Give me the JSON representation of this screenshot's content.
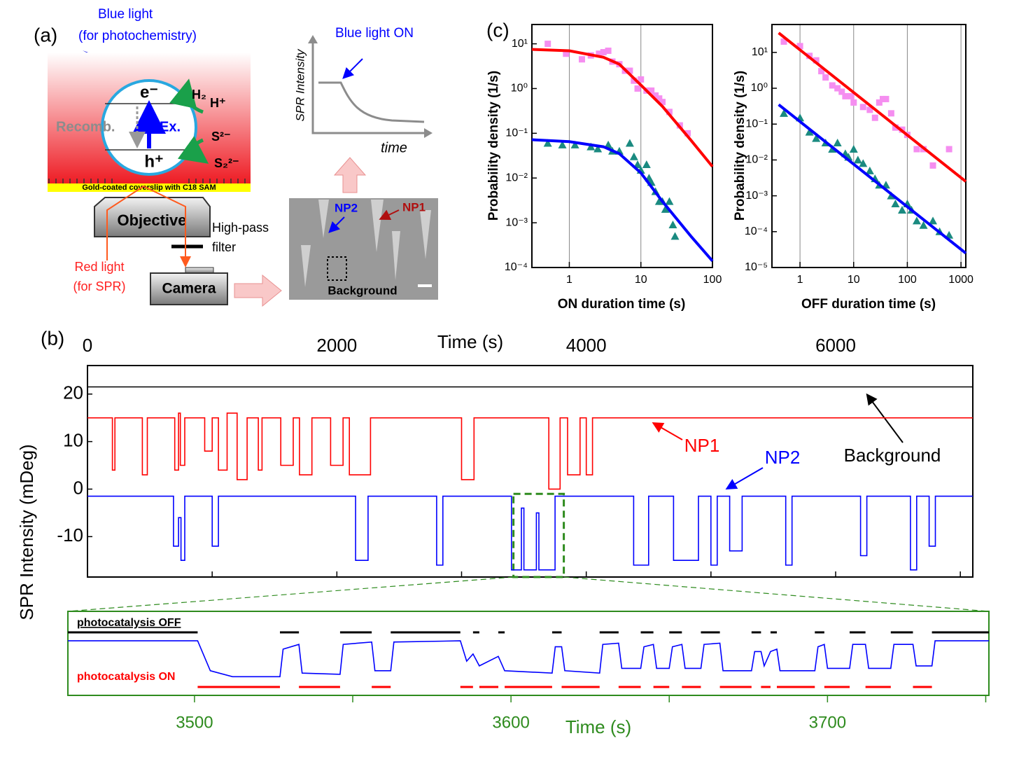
{
  "panel_a": {
    "label": "(a)",
    "blue_light": "Blue light",
    "blue_light_note": "(for photochemistry)",
    "electron": "e⁻",
    "hole": "h⁺",
    "excitation": "Ex.",
    "recombination": "Recomb.",
    "h2": "H₂",
    "hplus": "H⁺",
    "s2": "S²⁻",
    "s22": "S₂²⁻",
    "substrate": "Gold-coated coverslip with C18 SAM",
    "objective": "Objective",
    "filter_1": "High-pass",
    "filter_2": "filter",
    "red_light": "Red light",
    "red_light_note": "(for SPR)",
    "camera": "Camera",
    "sketch_event": "Blue light ON",
    "sketch_ylabel": "SPR Intensity",
    "sketch_xlabel": "time",
    "image_np2": "NP2",
    "image_np1": "NP1",
    "image_background": "Background"
  },
  "chart_data": [
    {
      "type": "scatter",
      "label": "(c)",
      "xlabel": "ON duration time (s)",
      "ylabel": "Probability density (1/s)",
      "log_x": true,
      "log_y": true,
      "grid": true,
      "xlim": [
        0.3,
        100
      ],
      "ylim": [
        0.0001,
        27
      ],
      "xticks": [
        1,
        10,
        100
      ],
      "yticks": [
        {
          "value": 0.0001,
          "label": "10⁻⁴"
        },
        {
          "value": 0.001,
          "label": "10⁻³"
        },
        {
          "value": 0.01,
          "label": "10⁻²"
        },
        {
          "value": 0.1,
          "label": "10⁻¹"
        },
        {
          "value": 1,
          "label": "10⁰"
        },
        {
          "value": 10,
          "label": "10¹"
        }
      ],
      "series": [
        {
          "color": "#f58ef0",
          "marker": "square",
          "x": [
            0.5,
            0.9,
            1.5,
            2,
            2.6,
            3,
            3.5,
            4,
            5,
            6,
            7,
            8,
            9,
            10,
            12,
            14,
            16,
            18,
            20,
            25,
            35,
            45
          ],
          "values": [
            10,
            6,
            4.5,
            5.5,
            6,
            6.5,
            7,
            4,
            3.5,
            2.5,
            2.5,
            1.5,
            1,
            1.6,
            0.9,
            0.9,
            0.7,
            0.6,
            0.5,
            0.3,
            0.15,
            0.1
          ]
        },
        {
          "color": "#1a8a80",
          "marker": "triangle",
          "x": [
            0.5,
            0.8,
            1.2,
            2,
            2.5,
            3.5,
            4,
            5,
            7,
            8,
            9,
            10,
            12,
            13,
            14,
            16,
            18,
            20,
            22,
            25,
            28,
            30
          ],
          "values": [
            0.06,
            0.055,
            0.055,
            0.05,
            0.045,
            0.055,
            0.04,
            0.04,
            0.06,
            0.03,
            0.02,
            0.015,
            0.02,
            0.01,
            0.008,
            0.005,
            0.003,
            0.003,
            0.002,
            0.003,
            0.0009,
            0.0005
          ]
        }
      ],
      "fits": [
        {
          "color": "#ff0000",
          "x": [
            0.3,
            1,
            3,
            5,
            10,
            20,
            50,
            100
          ],
          "values": [
            7.5,
            7,
            5,
            3.5,
            1.2,
            0.4,
            0.07,
            0.018
          ]
        },
        {
          "color": "#0000ff",
          "x": [
            0.3,
            1,
            3,
            5,
            10,
            20,
            50,
            100
          ],
          "values": [
            0.072,
            0.065,
            0.05,
            0.035,
            0.013,
            0.003,
            0.0005,
            0.00014
          ]
        }
      ]
    },
    {
      "type": "scatter",
      "xlabel": "OFF duration time (s)",
      "ylabel": "Probability density (1/s)",
      "log_x": true,
      "log_y": true,
      "grid": true,
      "xlim": [
        0.3,
        1230
      ],
      "ylim": [
        1e-05,
        60
      ],
      "xticks": [
        1,
        10,
        100,
        1000
      ],
      "yticks": [
        {
          "value": 1e-05,
          "label": "10⁻⁵"
        },
        {
          "value": 0.0001,
          "label": "10⁻⁴"
        },
        {
          "value": 0.001,
          "label": "10⁻³"
        },
        {
          "value": 0.01,
          "label": "10⁻²"
        },
        {
          "value": 0.1,
          "label": "10⁻¹"
        },
        {
          "value": 1,
          "label": "10⁰"
        },
        {
          "value": 10,
          "label": "10¹"
        }
      ],
      "series": [
        {
          "color": "#f58ef0",
          "marker": "square",
          "x": [
            0.5,
            1,
            1.5,
            2,
            2.5,
            3,
            4,
            5,
            6,
            7,
            9,
            10,
            15,
            20,
            25,
            30,
            35,
            40,
            50,
            60,
            80,
            100,
            150,
            200,
            300,
            600
          ],
          "values": [
            20,
            15,
            8,
            6,
            3,
            2,
            1.2,
            1,
            0.8,
            0.6,
            0.6,
            0.4,
            0.3,
            0.25,
            0.15,
            0.4,
            0.5,
            0.5,
            0.2,
            0.08,
            0.07,
            0.05,
            0.02,
            0.02,
            0.007,
            0.02
          ]
        },
        {
          "color": "#1a8a80",
          "marker": "triangle",
          "x": [
            0.5,
            1,
            1.5,
            2,
            3,
            4,
            5,
            7,
            8,
            10,
            12,
            15,
            20,
            25,
            30,
            40,
            50,
            60,
            80,
            100,
            120,
            150,
            200,
            300,
            400,
            600
          ],
          "values": [
            0.2,
            0.15,
            0.06,
            0.04,
            0.03,
            0.02,
            0.03,
            0.015,
            0.012,
            0.02,
            0.01,
            0.008,
            0.005,
            0.003,
            0.002,
            0.002,
            0.001,
            0.0006,
            0.0004,
            0.0006,
            0.0004,
            0.0002,
            0.00015,
            0.0002,
            0.0001,
            8e-05
          ]
        }
      ],
      "fits": [
        {
          "color": "#ff0000",
          "x": [
            0.4,
            1230
          ],
          "values": [
            35,
            0.0025
          ]
        },
        {
          "color": "#0000ff",
          "x": [
            0.4,
            1230
          ],
          "values": [
            0.35,
            2.5e-05
          ]
        }
      ]
    },
    {
      "type": "line",
      "label": "(b)",
      "xlabel": "Time (s)",
      "ylabel": "SPR Intensity (mDeg)",
      "xlim": [
        0,
        7100
      ],
      "ylim": [
        -18.5,
        26
      ],
      "xticks": [
        0,
        2000,
        4000,
        6000
      ],
      "xminor": [
        1000,
        3000,
        5000,
        7000
      ],
      "yticks": [
        -10,
        0,
        10,
        20
      ],
      "zoom_box": {
        "x": [
          3416,
          3820
        ],
        "y": [
          -18.5,
          -1
        ],
        "color": "#2e8b1e"
      },
      "series": [
        {
          "name": "Background",
          "color": "#000000",
          "x": [
            0,
            7100
          ],
          "values": [
            21.5,
            21.5
          ]
        },
        {
          "name": "NP1",
          "color": "#ff0000",
          "x": [
            0,
            200,
            200,
            220,
            220,
            440,
            440,
            480,
            480,
            700,
            700,
            730,
            730,
            745,
            745,
            780,
            780,
            940,
            940,
            1000,
            1000,
            1050,
            1050,
            1120,
            1120,
            1200,
            1200,
            1280,
            1280,
            1370,
            1370,
            1400,
            1400,
            1550,
            1550,
            1650,
            1650,
            1700,
            1700,
            1800,
            1800,
            1950,
            1950,
            2050,
            2050,
            2100,
            2100,
            2270,
            2270,
            3000,
            3000,
            3100,
            3100,
            3700,
            3700,
            3790,
            3790,
            3850,
            3850,
            3950,
            3950,
            4000,
            4000,
            4050,
            4050,
            7100
          ],
          "values": [
            15,
            15,
            4,
            4,
            15,
            15,
            3,
            3,
            15,
            15,
            4,
            4,
            16,
            16,
            5,
            5,
            15,
            15,
            8,
            8,
            15,
            15,
            4,
            4,
            16,
            16,
            2,
            2,
            15,
            15,
            4,
            4,
            15,
            15,
            5,
            5,
            15,
            15,
            3,
            3,
            15,
            15,
            5,
            5,
            15,
            15,
            3,
            3,
            15,
            15,
            2,
            2,
            15,
            15,
            0,
            0,
            15,
            15,
            3,
            3,
            15,
            15,
            3,
            3,
            15,
            15
          ]
        },
        {
          "name": "NP2",
          "color": "#0000ff",
          "x": [
            0,
            690,
            690,
            730,
            730,
            750,
            750,
            780,
            780,
            1000,
            1000,
            1050,
            1050,
            2150,
            2150,
            2250,
            2250,
            2800,
            2800,
            2850,
            2850,
            3400,
            3400,
            3480,
            3480,
            3500,
            3500,
            3600,
            3600,
            3620,
            3620,
            3750,
            3750,
            4380,
            4380,
            4500,
            4500,
            4700,
            4700,
            4900,
            4900,
            5000,
            5000,
            5050,
            5050,
            5150,
            5150,
            5250,
            5250,
            5600,
            5600,
            5650,
            5650,
            6200,
            6200,
            6250,
            6250,
            6600,
            6600,
            6650,
            6650,
            6750,
            6750,
            6800,
            6800,
            7100
          ],
          "values": [
            -1.5,
            -1.5,
            -12,
            -12,
            -6,
            -6,
            -15,
            -15,
            -1.5,
            -1.5,
            -12,
            -12,
            -1.5,
            -1.5,
            -15,
            -15,
            -1.5,
            -1.5,
            -16,
            -16,
            -1.5,
            -1.5,
            -17,
            -17,
            -4,
            -4,
            -17,
            -17,
            -5,
            -5,
            -17,
            -17,
            -1.5,
            -1.5,
            -16,
            -16,
            -1.5,
            -1.5,
            -15,
            -15,
            -1.5,
            -1.5,
            -16,
            -16,
            -1.5,
            -1.5,
            -13,
            -13,
            -1.5,
            -1.5,
            -16,
            -16,
            -1.5,
            -1.5,
            -14,
            -14,
            -1.5,
            -1.5,
            -17,
            -17,
            -1.5,
            -1.5,
            -12,
            -12,
            -1.5,
            -1.5
          ]
        }
      ]
    },
    {
      "type": "line",
      "xlabel": "Time (s)",
      "axis_color": "#2e8b1e",
      "xlim": [
        3460,
        3751
      ],
      "ylim": [
        -24.3,
        10.8
      ],
      "xticks": [
        3500,
        3600,
        3700
      ],
      "xminor": [
        3550,
        3650,
        3750
      ],
      "yticks": [],
      "off_label": "photocatalysis OFF",
      "on_label": "photocatalysis ON",
      "off_color": "#000000",
      "on_color": "#ff0000",
      "on_intervals": [
        [
          3501,
          3527
        ],
        [
          3533,
          3546
        ],
        [
          3556,
          3562
        ],
        [
          3584,
          3588
        ],
        [
          3590,
          3596
        ],
        [
          3598,
          3613
        ],
        [
          3616,
          3628
        ],
        [
          3634,
          3641
        ],
        [
          3645,
          3650
        ],
        [
          3654,
          3660
        ],
        [
          3666,
          3676
        ],
        [
          3679,
          3682
        ],
        [
          3684,
          3696
        ],
        [
          3699,
          3707
        ],
        [
          3712,
          3720
        ],
        [
          3727,
          3733
        ]
      ],
      "off_intervals": [
        [
          3460,
          3501
        ],
        [
          3527,
          3533
        ],
        [
          3546,
          3556
        ],
        [
          3562,
          3584
        ],
        [
          3588,
          3590
        ],
        [
          3596,
          3598
        ],
        [
          3613,
          3616
        ],
        [
          3628,
          3634
        ],
        [
          3641,
          3645
        ],
        [
          3650,
          3654
        ],
        [
          3660,
          3666
        ],
        [
          3676,
          3679
        ],
        [
          3682,
          3684
        ],
        [
          3696,
          3699
        ],
        [
          3707,
          3712
        ],
        [
          3720,
          3727
        ],
        [
          3733,
          3751
        ]
      ],
      "series": [
        {
          "color": "#0000ff",
          "x": [
            3460,
            3501,
            3505,
            3512,
            3527,
            3528,
            3533,
            3534,
            3546,
            3547,
            3556,
            3557,
            3562,
            3563,
            3584,
            3586,
            3588,
            3590,
            3596,
            3598,
            3613,
            3614,
            3616,
            3617,
            3628,
            3629,
            3634,
            3635,
            3641,
            3642,
            3645,
            3646,
            3650,
            3651,
            3654,
            3655,
            3660,
            3661,
            3666,
            3667,
            3676,
            3677,
            3679,
            3680,
            3682,
            3684,
            3685,
            3696,
            3697,
            3699,
            3700,
            3707,
            3708,
            3712,
            3713,
            3720,
            3721,
            3727,
            3728,
            3733,
            3734,
            3751
          ],
          "values": [
            -1.5,
            -1.5,
            -14,
            -16.5,
            -16.5,
            -5,
            -3,
            -15,
            -15.5,
            -3,
            -2,
            -14,
            -14,
            -2,
            -1.5,
            -10,
            -7,
            -12,
            -8,
            -14,
            -15,
            -4,
            -4,
            -14,
            -15,
            -3,
            -2.5,
            -13,
            -13,
            -4,
            -3,
            -13,
            -13,
            -4,
            -3,
            -13,
            -13,
            -3,
            -2.5,
            -14,
            -14,
            -6,
            -6,
            -12,
            -6,
            -5,
            -14,
            -14,
            -4,
            -3,
            -13,
            -13,
            -3,
            -3,
            -13,
            -13,
            -3,
            -3,
            -12,
            -12,
            -1.5,
            -1.5
          ]
        }
      ]
    }
  ]
}
